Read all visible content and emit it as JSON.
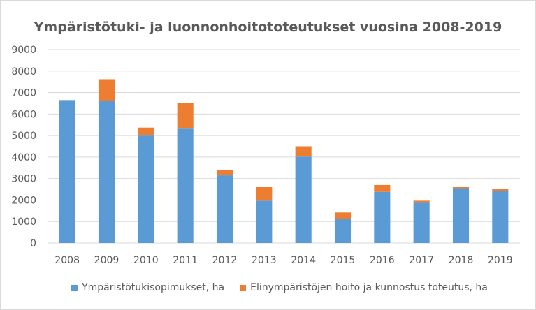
{
  "chart_data": {
    "type": "bar",
    "stacked": true,
    "title": "Ympäristötuki- ja luonnonhoitototeutukset vuosina 2008-2019",
    "xlabel": "",
    "ylabel": "",
    "ylim": [
      0,
      9000
    ],
    "yticks": [
      0,
      1000,
      2000,
      3000,
      4000,
      5000,
      6000,
      7000,
      8000,
      9000
    ],
    "grid": true,
    "legend_position": "bottom",
    "categories": [
      "2008",
      "2009",
      "2010",
      "2011",
      "2012",
      "2013",
      "2014",
      "2015",
      "2016",
      "2017",
      "2018",
      "2019"
    ],
    "series": [
      {
        "name": "Ympäristötukisopimukset, ha",
        "color": "#5b9bd5",
        "values": [
          6650,
          6620,
          5000,
          5320,
          3150,
          1970,
          4020,
          1120,
          2380,
          1870,
          2550,
          2430
        ]
      },
      {
        "name": "Elinympäristöjen hoito ja kunnostus toteutus, ha",
        "color": "#ed7d31",
        "values": [
          0,
          1000,
          370,
          1200,
          230,
          630,
          480,
          300,
          320,
          100,
          50,
          90
        ]
      }
    ]
  }
}
